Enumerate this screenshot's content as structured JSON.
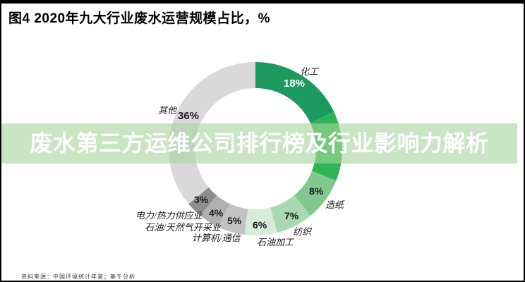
{
  "page": {
    "title": "图4 2020年九大行业废水运营规模占比，%",
    "source": "资料来源：中国环境统计年鉴；基于分析"
  },
  "banner": {
    "text": "废水第三方运维公司排行榜及行业影响力解析",
    "bg_color": "#a8d5a0",
    "text_color": "#ffffff"
  },
  "chart_data": {
    "type": "pie",
    "donut": true,
    "title": "2020年九大行业废水运营规模占比，%",
    "unit": "%",
    "start_angle_deg": 0,
    "direction": "clockwise",
    "center": {
      "inner_radius_ratio": 0.7
    },
    "segments": [
      {
        "label": "化工",
        "value": 18,
        "pct_text": "18%",
        "color": "#1d9b5e"
      },
      {
        "label": "",
        "value": 13,
        "pct_text": "",
        "color": "#2eb453"
      },
      {
        "label": "造纸",
        "value": 8,
        "pct_text": "8%",
        "color": "#80c88e"
      },
      {
        "label": "纺织",
        "value": 7,
        "pct_text": "7%",
        "color": "#a9d9b0"
      },
      {
        "label": "石油加工",
        "value": 6,
        "pct_text": "6%",
        "color": "#d7ecda"
      },
      {
        "label": "计算机/通信",
        "value": 5,
        "pct_text": "5%",
        "color": "#c2c2c2"
      },
      {
        "label": "石油/天然气开采业",
        "value": 4,
        "pct_text": "4%",
        "color": "#b1b1b1"
      },
      {
        "label": "电力/热力供应业",
        "value": 3,
        "pct_text": "3%",
        "color": "#8e8e8e"
      },
      {
        "label": "其他",
        "value": 36,
        "pct_text": "36%",
        "color": "#d9d9d9"
      }
    ]
  }
}
